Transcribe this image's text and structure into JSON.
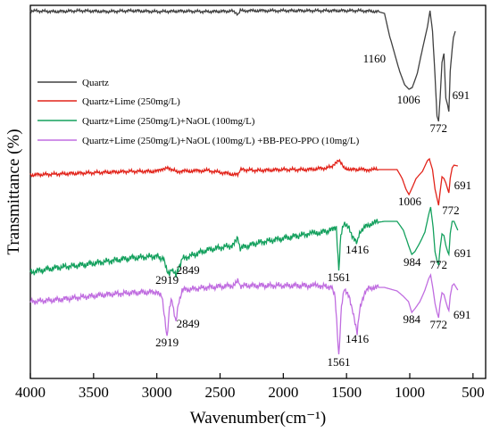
{
  "chart_data": {
    "type": "line",
    "xlabel": "Wavenumber(cm⁻¹)",
    "ylabel": "Transmittance (%)",
    "xlim": [
      4000,
      400
    ],
    "x_reversed": true,
    "x_ticks": [
      4000,
      3500,
      3000,
      2500,
      2000,
      1500,
      1000,
      500
    ],
    "y_ticks_shown": false,
    "legend_position": "upper-left",
    "series": [
      {
        "name": "Quartz",
        "color": "#404040",
        "points": [
          [
            4000,
            12
          ],
          [
            3800,
            13
          ],
          [
            3600,
            12
          ],
          [
            3400,
            13
          ],
          [
            3200,
            12
          ],
          [
            3000,
            13
          ],
          [
            2800,
            12.5
          ],
          [
            2600,
            13
          ],
          [
            2400,
            12.5
          ],
          [
            2360,
            16
          ],
          [
            2340,
            12
          ],
          [
            2000,
            12
          ],
          [
            1800,
            12
          ],
          [
            1600,
            12
          ],
          [
            1400,
            12
          ],
          [
            1250,
            13
          ],
          [
            1200,
            15
          ],
          [
            1160,
            40
          ],
          [
            1120,
            60
          ],
          [
            1080,
            80
          ],
          [
            1040,
            95
          ],
          [
            1006,
            100
          ],
          [
            980,
            98
          ],
          [
            940,
            82
          ],
          [
            900,
            55
          ],
          [
            860,
            30
          ],
          [
            840,
            12
          ],
          [
            820,
            35
          ],
          [
            800,
            85
          ],
          [
            785,
            130
          ],
          [
            772,
            136
          ],
          [
            760,
            110
          ],
          [
            745,
            70
          ],
          [
            730,
            60
          ],
          [
            715,
            110
          ],
          [
            700,
            118
          ],
          [
            691,
            125
          ],
          [
            680,
            80
          ],
          [
            665,
            55
          ],
          [
            655,
            42
          ],
          [
            640,
            35
          ]
        ]
      },
      {
        "name": "Quartz+Lime (250mg/L)",
        "color": "#e2231a",
        "points": [
          [
            4000,
            196
          ],
          [
            3800,
            195
          ],
          [
            3600,
            194
          ],
          [
            3400,
            193
          ],
          [
            3200,
            192
          ],
          [
            3000,
            192
          ],
          [
            2919,
            187
          ],
          [
            2880,
            190
          ],
          [
            2849,
            192
          ],
          [
            2600,
            191
          ],
          [
            2360,
            196
          ],
          [
            2340,
            190
          ],
          [
            2200,
            191
          ],
          [
            2000,
            190
          ],
          [
            1800,
            190
          ],
          [
            1650,
            188
          ],
          [
            1600,
            185
          ],
          [
            1561,
            180
          ],
          [
            1520,
            188
          ],
          [
            1450,
            190
          ],
          [
            1400,
            190
          ],
          [
            1300,
            190
          ],
          [
            1200,
            190
          ],
          [
            1100,
            190
          ],
          [
            1060,
            200
          ],
          [
            1030,
            212
          ],
          [
            1006,
            218
          ],
          [
            980,
            210
          ],
          [
            950,
            200
          ],
          [
            900,
            192
          ],
          [
            860,
            180
          ],
          [
            845,
            178
          ],
          [
            820,
            190
          ],
          [
            800,
            212
          ],
          [
            780,
            225
          ],
          [
            772,
            230
          ],
          [
            760,
            215
          ],
          [
            745,
            198
          ],
          [
            730,
            200
          ],
          [
            715,
            205
          ],
          [
            700,
            212
          ],
          [
            691,
            216
          ],
          [
            680,
            200
          ],
          [
            665,
            188
          ],
          [
            650,
            185
          ],
          [
            620,
            186
          ]
        ]
      },
      {
        "name": "Quartz+Lime (250mg/L)+NaOL (100mg/L)",
        "color": "#13a05d",
        "points": [
          [
            4000,
            305
          ],
          [
            3800,
            300
          ],
          [
            3600,
            297
          ],
          [
            3400,
            293
          ],
          [
            3200,
            289
          ],
          [
            3000,
            287
          ],
          [
            2950,
            290
          ],
          [
            2919,
            302
          ],
          [
            2900,
            308
          ],
          [
            2880,
            300
          ],
          [
            2849,
            310
          ],
          [
            2820,
            298
          ],
          [
            2800,
            290
          ],
          [
            2600,
            280
          ],
          [
            2400,
            275
          ],
          [
            2360,
            268
          ],
          [
            2340,
            278
          ],
          [
            2200,
            272
          ],
          [
            2000,
            267
          ],
          [
            1800,
            262
          ],
          [
            1700,
            260
          ],
          [
            1620,
            258
          ],
          [
            1580,
            255
          ],
          [
            1561,
            302
          ],
          [
            1545,
            262
          ],
          [
            1520,
            252
          ],
          [
            1480,
            255
          ],
          [
            1450,
            265
          ],
          [
            1416,
            272
          ],
          [
            1390,
            258
          ],
          [
            1300,
            250
          ],
          [
            1200,
            248
          ],
          [
            1150,
            248
          ],
          [
            1100,
            248
          ],
          [
            1050,
            258
          ],
          [
            1010,
            275
          ],
          [
            984,
            285
          ],
          [
            960,
            282
          ],
          [
            920,
            272
          ],
          [
            880,
            260
          ],
          [
            850,
            240
          ],
          [
            835,
            232
          ],
          [
            815,
            255
          ],
          [
            800,
            282
          ],
          [
            785,
            292
          ],
          [
            772,
            297
          ],
          [
            760,
            278
          ],
          [
            745,
            262
          ],
          [
            730,
            264
          ],
          [
            715,
            275
          ],
          [
            700,
            282
          ],
          [
            691,
            285
          ],
          [
            680,
            262
          ],
          [
            665,
            248
          ],
          [
            650,
            248
          ],
          [
            620,
            258
          ]
        ]
      },
      {
        "name": "Quartz+Lime (250mg/L)+NaOL (100mg/L) +BB-PEO-PPO (10mg/L)",
        "color": "#c06de0",
        "points": [
          [
            4000,
            338
          ],
          [
            3800,
            336
          ],
          [
            3600,
            333
          ],
          [
            3400,
            330
          ],
          [
            3200,
            328
          ],
          [
            3000,
            327
          ],
          [
            2960,
            333
          ],
          [
            2919,
            378
          ],
          [
            2900,
            345
          ],
          [
            2880,
            335
          ],
          [
            2849,
            362
          ],
          [
            2830,
            340
          ],
          [
            2800,
            325
          ],
          [
            2600,
            322
          ],
          [
            2400,
            320
          ],
          [
            2360,
            315
          ],
          [
            2340,
            320
          ],
          [
            2200,
            320
          ],
          [
            2000,
            320
          ],
          [
            1800,
            320
          ],
          [
            1700,
            320
          ],
          [
            1620,
            322
          ],
          [
            1590,
            332
          ],
          [
            1561,
            398
          ],
          [
            1540,
            342
          ],
          [
            1520,
            325
          ],
          [
            1480,
            333
          ],
          [
            1450,
            348
          ],
          [
            1416,
            372
          ],
          [
            1390,
            342
          ],
          [
            1350,
            325
          ],
          [
            1300,
            322
          ],
          [
            1200,
            322
          ],
          [
            1100,
            326
          ],
          [
            1050,
            332
          ],
          [
            1010,
            338
          ],
          [
            984,
            350
          ],
          [
            960,
            346
          ],
          [
            920,
            338
          ],
          [
            880,
            325
          ],
          [
            850,
            312
          ],
          [
            835,
            308
          ],
          [
            815,
            325
          ],
          [
            800,
            340
          ],
          [
            785,
            350
          ],
          [
            772,
            356
          ],
          [
            760,
            340
          ],
          [
            745,
            328
          ],
          [
            730,
            330
          ],
          [
            715,
            338
          ],
          [
            700,
            345
          ],
          [
            691,
            348
          ],
          [
            680,
            332
          ],
          [
            665,
            320
          ],
          [
            650,
            318
          ],
          [
            620,
            325
          ]
        ]
      }
    ],
    "annotations": [
      {
        "text": "1160",
        "series": 0
      },
      {
        "text": "1006",
        "series": 0
      },
      {
        "text": "772",
        "series": 0
      },
      {
        "text": "691",
        "series": 0
      },
      {
        "text": "691",
        "series": 1
      },
      {
        "text": "1006",
        "series": 1
      },
      {
        "text": "772",
        "series": 1
      },
      {
        "text": "1416",
        "series": 2
      },
      {
        "text": "984",
        "series": 2
      },
      {
        "text": "691",
        "series": 2
      },
      {
        "text": "772",
        "series": 2
      },
      {
        "text": "2849",
        "series": 2
      },
      {
        "text": "2919",
        "series": 2
      },
      {
        "text": "1561",
        "series": 2
      },
      {
        "text": "2849",
        "series": 3
      },
      {
        "text": "2919",
        "series": 3
      },
      {
        "text": "1416",
        "series": 3
      },
      {
        "text": "984",
        "series": 3
      },
      {
        "text": "772",
        "series": 3
      },
      {
        "text": "691",
        "series": 3
      },
      {
        "text": "1561",
        "series": 3
      }
    ]
  }
}
